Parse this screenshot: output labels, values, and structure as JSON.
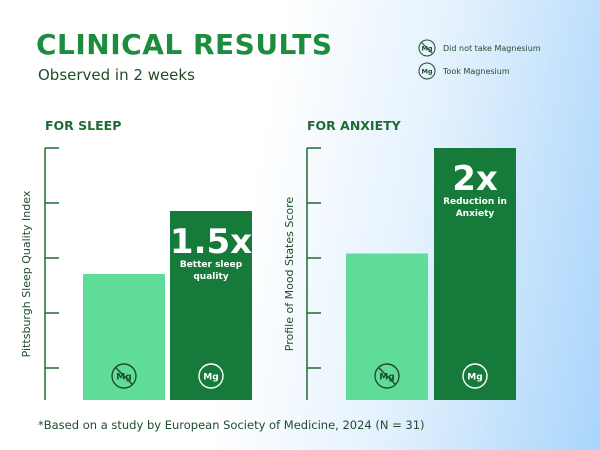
{
  "title": "CLINICAL RESULTS",
  "subtitle": "Observed in 2 weeks",
  "legend": [
    {
      "label": "Did not take Magnesium",
      "icon": "no-magnesium-icon"
    },
    {
      "label": "Took Magnesium",
      "icon": "magnesium-icon"
    }
  ],
  "icon_text": "Mg",
  "colors": {
    "light": "#5fdc97",
    "dark": "#157a3a",
    "text": "#1f4d2c",
    "axis": "#1e6b33"
  },
  "chart_data": [
    {
      "type": "bar",
      "title": "FOR SLEEP",
      "ylabel": "Pittsburgh Sleep Quality Index",
      "categories": [
        "Did not take Magnesium",
        "Took Magnesium"
      ],
      "values": [
        1,
        1.5
      ],
      "ylim": [
        0,
        2
      ],
      "annotation": {
        "value": "1.5x",
        "label": "Better sleep quality"
      }
    },
    {
      "type": "bar",
      "title": "FOR ANXIETY",
      "ylabel": "Profile of Mood States Score",
      "categories": [
        "Did not take Magnesium",
        "Took Magnesium"
      ],
      "values": [
        1,
        1.72
      ],
      "ylim": [
        0,
        1.72
      ],
      "annotation": {
        "value": "2x",
        "label": "Reduction in Anxiety"
      }
    }
  ],
  "footnote": "*Based on a study by European Society of Medicine, 2024 (N = 31)"
}
